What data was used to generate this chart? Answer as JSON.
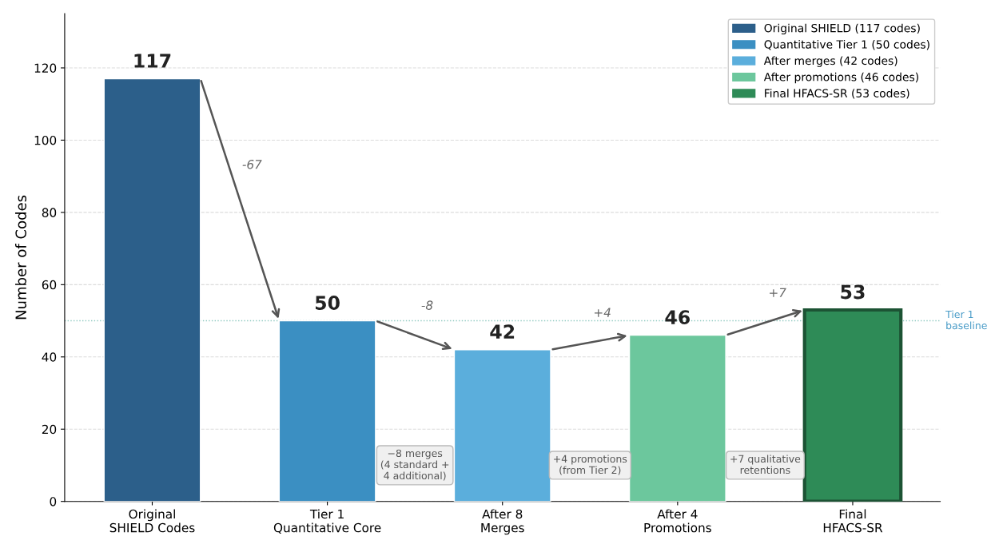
{
  "chart_data": {
    "type": "bar",
    "ylabel": "Number of Codes",
    "categories": [
      "Original\nSHIELD Codes",
      "Tier 1\nQuantitative Core",
      "After 8\nMerges",
      "After 4\nPromotions",
      "Final\nHFACS-SR"
    ],
    "series": [
      {
        "name": "Original SHIELD (117 codes)",
        "color": "#2c5f8a",
        "values": [
          117,
          null,
          null,
          null,
          null
        ]
      },
      {
        "name": "Quantitative Tier 1 (50 codes)",
        "color": "#3b8fc2",
        "values": [
          null,
          50,
          null,
          null,
          null
        ]
      },
      {
        "name": "After merges (42 codes)",
        "color": "#5baedc",
        "values": [
          null,
          null,
          42,
          null,
          null
        ]
      },
      {
        "name": "After promotions (46 codes)",
        "color": "#6cc79d",
        "values": [
          null,
          null,
          null,
          46,
          null
        ]
      },
      {
        "name": "Final HFACS-SR (53 codes)",
        "color": "#2e8b57",
        "values": [
          null,
          null,
          null,
          null,
          53
        ]
      }
    ],
    "data_labels": true,
    "ylim": [
      0,
      135
    ],
    "yticks": [
      0,
      20,
      40,
      60,
      80,
      100,
      120
    ],
    "grid": "y",
    "legend": "top right",
    "ref_lines": [
      {
        "axis": "y",
        "value": 50,
        "label": "Tier 1\nbaseline",
        "color": "#8fc9c0",
        "line_style": "dotted"
      }
    ],
    "annotations": [
      "-67",
      "-8",
      "+4",
      "+7",
      "−8 merges\n(4 standard +\n4 additional)",
      "+4 promotions\n(from Tier 2)",
      "+7 qualitative\nretentions"
    ]
  }
}
